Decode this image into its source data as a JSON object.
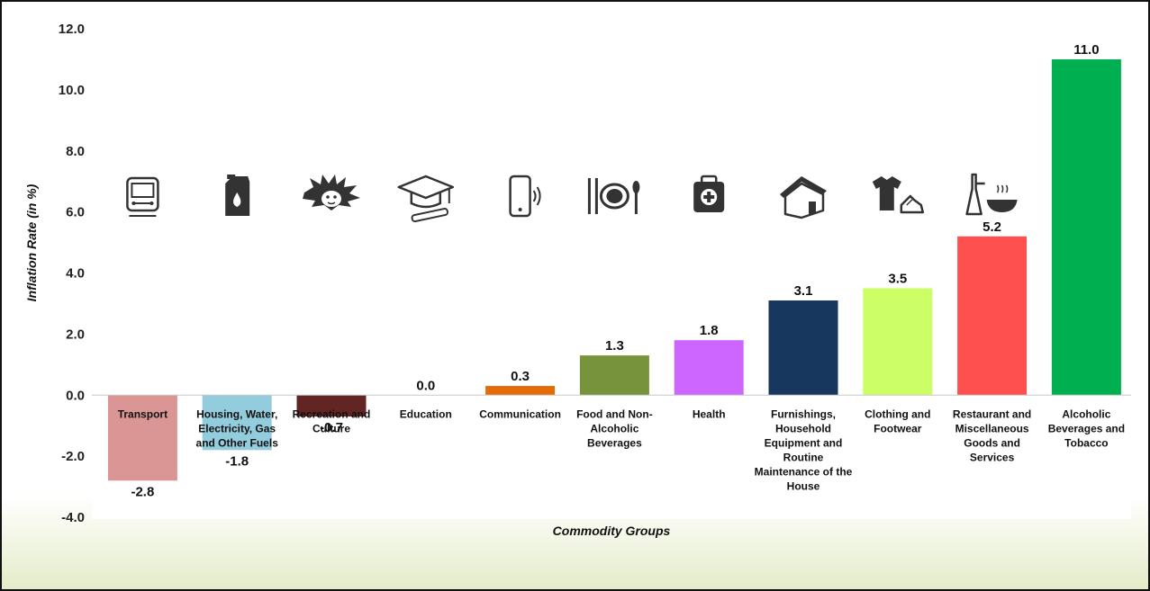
{
  "chart_data": {
    "type": "bar",
    "title": "",
    "xlabel": "Commodity Groups",
    "ylabel": "Inflation Rate (in %)",
    "ylim": [
      -4,
      12
    ],
    "yticks": [
      "-4.0",
      "-2.0",
      "0.0",
      "2.0",
      "4.0",
      "6.0",
      "8.0",
      "10.0",
      "12.0"
    ],
    "grid": false,
    "categories": [
      "Transport",
      "Housing, Water, Electricity, Gas and Other Fuels",
      "Recreation and Culture",
      "Education",
      "Communication",
      "Food and Non-Alcoholic Beverages",
      "Health",
      "Furnishings, Household Equipment and Routine Maintenance of the House",
      "Clothing and Footwear",
      "Restaurant and Miscellaneous Goods and Services",
      "Alcoholic Beverages and Tobacco"
    ],
    "category_lines": [
      [
        "Transport"
      ],
      [
        "Housing, Water,",
        "Electricity, Gas",
        "and Other Fuels"
      ],
      [
        "Recreation and",
        "Culture"
      ],
      [
        "Education"
      ],
      [
        "Communication"
      ],
      [
        "Food and Non-",
        "Alcoholic",
        "Beverages"
      ],
      [
        "Health"
      ],
      [
        "Furnishings,",
        "Household",
        "Equipment and",
        "Routine",
        "Maintenance of the",
        "House"
      ],
      [
        "Clothing and",
        "Footwear"
      ],
      [
        "Restaurant and",
        "Miscellaneous",
        "Goods and",
        "Services"
      ],
      [
        "Alcoholic",
        "Beverages and",
        "Tobacco"
      ]
    ],
    "values": [
      -2.8,
      -1.8,
      -0.7,
      0.0,
      0.3,
      1.3,
      1.8,
      3.1,
      3.5,
      5.2,
      11.0
    ],
    "value_labels": [
      "-2.8",
      "-1.8",
      "-0.7",
      "0.0",
      "0.3",
      "1.3",
      "1.8",
      "3.1",
      "3.5",
      "5.2",
      "11.0"
    ],
    "colors": [
      "#d99694",
      "#93cddd",
      "#632523",
      "#ffffff",
      "#e36c09",
      "#77933c",
      "#cc66ff",
      "#17375e",
      "#ccff66",
      "#ff5050",
      "#00b050"
    ],
    "icons": [
      "train-icon",
      "fuel-can-icon",
      "mask-icon",
      "graduation-cap-icon",
      "mobile-phone-icon",
      "dining-icon",
      "first-aid-kit-icon",
      "house-icon",
      "clothing-icon",
      "restaurant-icon",
      "bottles-icon"
    ]
  }
}
